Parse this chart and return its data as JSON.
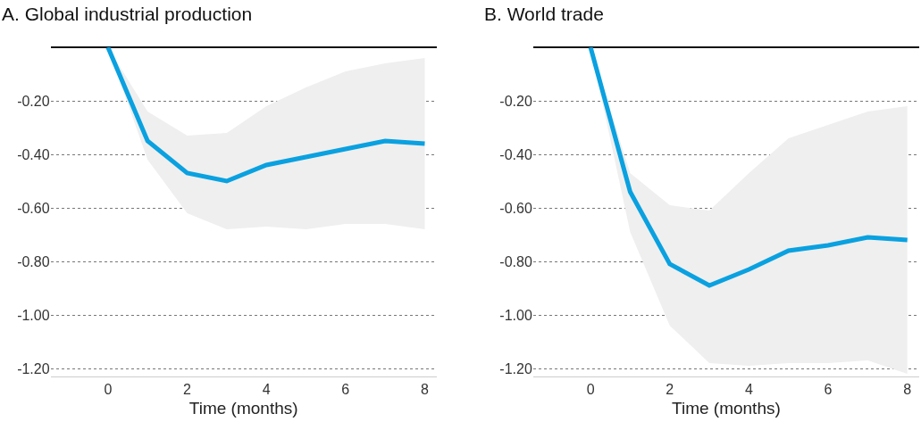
{
  "chart_data": [
    {
      "type": "line",
      "title": "A. Global industrial production",
      "xlabel": "Time (months)",
      "x": [
        0,
        1,
        2,
        3,
        4,
        5,
        6,
        7,
        8
      ],
      "series": [
        {
          "color": "#0aa1e0",
          "values": [
            0,
            -0.35,
            -0.47,
            -0.5,
            -0.44,
            -0.41,
            -0.38,
            -0.35,
            -0.36
          ],
          "lower": [
            0,
            -0.42,
            -0.62,
            -0.68,
            -0.67,
            -0.68,
            -0.66,
            -0.66,
            -0.68
          ],
          "upper": [
            0,
            -0.24,
            -0.33,
            -0.32,
            -0.22,
            -0.15,
            -0.09,
            -0.06,
            -0.04
          ]
        }
      ],
      "xlim": [
        -1.45,
        8.3
      ],
      "xticks": [
        0,
        2,
        4,
        6,
        8
      ],
      "ylim": [
        -1.23,
        0
      ],
      "yticks": [
        {
          "value": -0.2,
          "label": "-0.20"
        },
        {
          "value": -0.4,
          "label": "-0.40"
        },
        {
          "value": -0.6,
          "label": "-0.60"
        },
        {
          "value": -0.8,
          "label": "-0.80"
        },
        {
          "value": -1.0,
          "label": "-1.00"
        },
        {
          "value": -1.2,
          "label": "-1.20"
        }
      ],
      "grid": "y",
      "marker": "none",
      "line_style": "solid"
    },
    {
      "type": "line",
      "title": "B. World trade",
      "xlabel": "Time (months)",
      "x": [
        0,
        1,
        2,
        3,
        4,
        5,
        6,
        7,
        8
      ],
      "series": [
        {
          "color": "#0aa1e0",
          "values": [
            0,
            -0.54,
            -0.81,
            -0.89,
            -0.83,
            -0.76,
            -0.74,
            -0.71,
            -0.72
          ],
          "lower": [
            0,
            -0.69,
            -1.04,
            -1.18,
            -1.19,
            -1.18,
            -1.18,
            -1.17,
            -1.22
          ],
          "upper": [
            0,
            -0.47,
            -0.59,
            -0.61,
            -0.47,
            -0.34,
            -0.29,
            -0.24,
            -0.22
          ]
        }
      ],
      "xlim": [
        -1.45,
        8.3
      ],
      "xticks": [
        0,
        2,
        4,
        6,
        8
      ],
      "ylim": [
        -1.23,
        0
      ],
      "yticks": [
        {
          "value": -0.2,
          "label": "-0.20"
        },
        {
          "value": -0.4,
          "label": "-0.40"
        },
        {
          "value": -0.6,
          "label": "-0.60"
        },
        {
          "value": -0.8,
          "label": "-0.80"
        },
        {
          "value": -1.0,
          "label": "-1.00"
        },
        {
          "value": -1.2,
          "label": "-1.20"
        }
      ],
      "grid": "y",
      "marker": "none",
      "line_style": "solid"
    }
  ]
}
